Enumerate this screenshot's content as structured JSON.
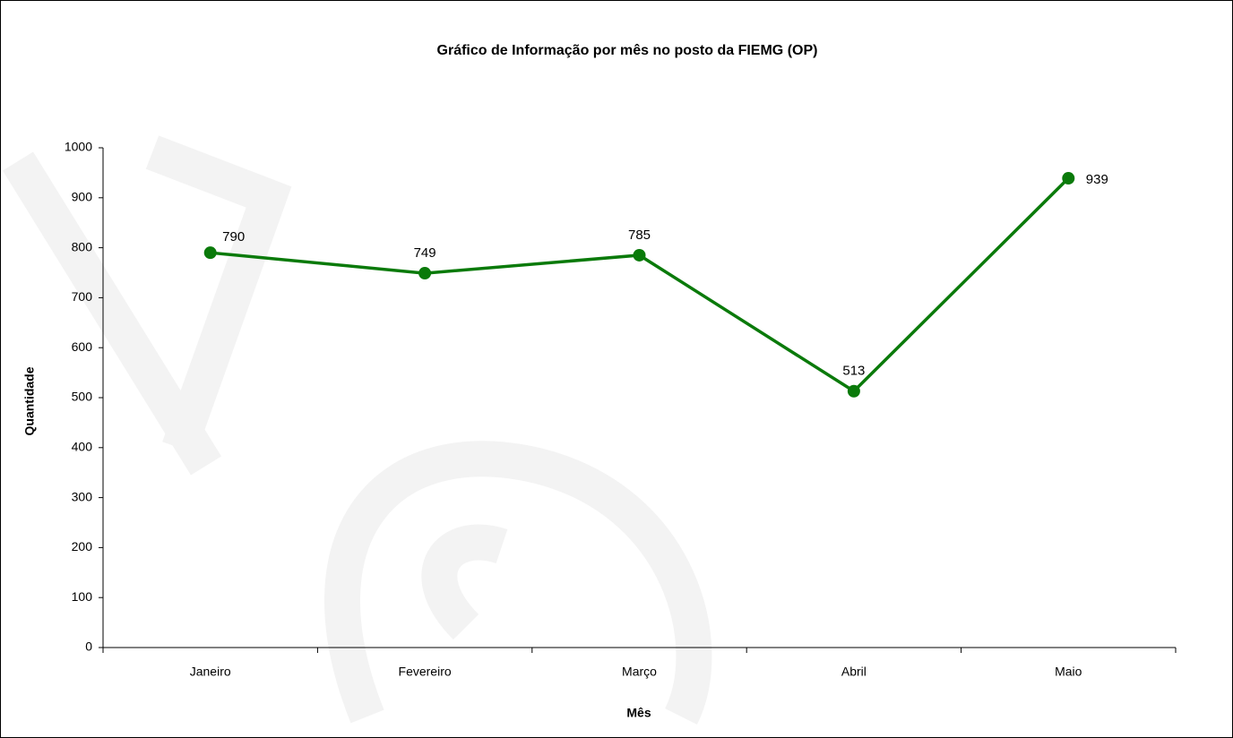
{
  "chart_data": {
    "type": "line",
    "title": "Gráfico de Informação por mês no posto da FIEMG (OP)",
    "x_label": "Mês",
    "y_label": "Quantidade",
    "categories": [
      "Janeiro",
      "Fevereiro",
      "Março",
      "Abril",
      "Maio"
    ],
    "series": [
      {
        "name": "Quantidade",
        "color": "#0a7a0a",
        "values": [
          790,
          749,
          785,
          513,
          939
        ]
      }
    ],
    "ylim": [
      0,
      1000
    ],
    "yticks": [
      0,
      100,
      200,
      300,
      400,
      500,
      600,
      700,
      800,
      900,
      1000
    ],
    "grid": false
  }
}
